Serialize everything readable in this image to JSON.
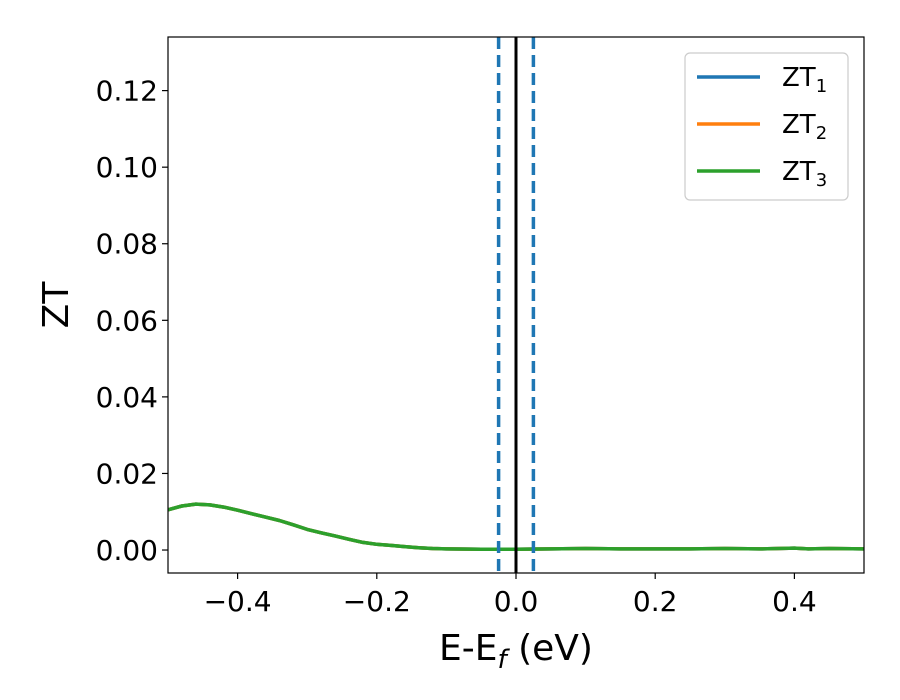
{
  "chart_data": {
    "type": "line",
    "xlabel": "E-E",
    "xlabel_sub": "f",
    "xlabel_unit": " (eV)",
    "ylabel": "ZT",
    "xlim": [
      -0.5,
      0.5
    ],
    "ylim": [
      -0.006,
      0.134
    ],
    "xticks": [
      -0.4,
      -0.2,
      0.0,
      0.2,
      0.4
    ],
    "xtick_labels": [
      "−0.4",
      "−0.2",
      "0.0",
      "0.2",
      "0.4"
    ],
    "yticks": [
      0.0,
      0.02,
      0.04,
      0.06,
      0.08,
      0.1,
      0.12
    ],
    "ytick_labels": [
      "0.00",
      "0.02",
      "0.04",
      "0.06",
      "0.08",
      "0.10",
      "0.12"
    ],
    "grid": false,
    "legend_position": "top-right",
    "legend_prefix": "ZT",
    "vlines": [
      {
        "x": 0.0,
        "style": "solid",
        "color": "#000000"
      },
      {
        "x": -0.025,
        "style": "dashed",
        "color": "#1f77b4"
      },
      {
        "x": 0.025,
        "style": "dashed",
        "color": "#1f77b4"
      }
    ],
    "x": [
      -0.5,
      -0.48,
      -0.46,
      -0.44,
      -0.42,
      -0.4,
      -0.38,
      -0.36,
      -0.34,
      -0.32,
      -0.3,
      -0.28,
      -0.26,
      -0.24,
      -0.22,
      -0.2,
      -0.18,
      -0.16,
      -0.14,
      -0.12,
      -0.1,
      -0.05,
      0.0,
      0.05,
      0.1,
      0.15,
      0.2,
      0.25,
      0.3,
      0.35,
      0.4,
      0.42,
      0.45,
      0.5
    ],
    "series": [
      {
        "name": "1",
        "color": "#1f77b4",
        "values": [
          0.0105,
          0.0115,
          0.012,
          0.0118,
          0.0112,
          0.0104,
          0.0095,
          0.0086,
          0.0077,
          0.0066,
          0.0054,
          0.0045,
          0.0037,
          0.0028,
          0.002,
          0.0015,
          0.0012,
          0.0009,
          0.0006,
          0.0004,
          0.0003,
          0.0002,
          0.0002,
          0.0003,
          0.0004,
          0.0003,
          0.0003,
          0.0003,
          0.0004,
          0.0003,
          0.0005,
          0.0003,
          0.0004,
          0.0003
        ]
      },
      {
        "name": "2",
        "color": "#ff7f0e",
        "values": [
          0.0105,
          0.0115,
          0.012,
          0.0118,
          0.0112,
          0.0104,
          0.0095,
          0.0086,
          0.0077,
          0.0066,
          0.0054,
          0.0045,
          0.0037,
          0.0028,
          0.002,
          0.0015,
          0.0012,
          0.0009,
          0.0006,
          0.0004,
          0.0003,
          0.0002,
          0.0002,
          0.0003,
          0.0004,
          0.0003,
          0.0003,
          0.0003,
          0.0004,
          0.0003,
          0.0005,
          0.0003,
          0.0004,
          0.0003
        ]
      },
      {
        "name": "3",
        "color": "#2ca02c",
        "values": [
          0.0105,
          0.0115,
          0.012,
          0.0118,
          0.0112,
          0.0104,
          0.0095,
          0.0086,
          0.0077,
          0.0066,
          0.0054,
          0.0045,
          0.0037,
          0.0028,
          0.002,
          0.0015,
          0.0012,
          0.0009,
          0.0006,
          0.0004,
          0.0003,
          0.0002,
          0.0002,
          0.0003,
          0.0004,
          0.0003,
          0.0003,
          0.0003,
          0.0004,
          0.0003,
          0.0005,
          0.0003,
          0.0004,
          0.0003
        ]
      }
    ]
  }
}
